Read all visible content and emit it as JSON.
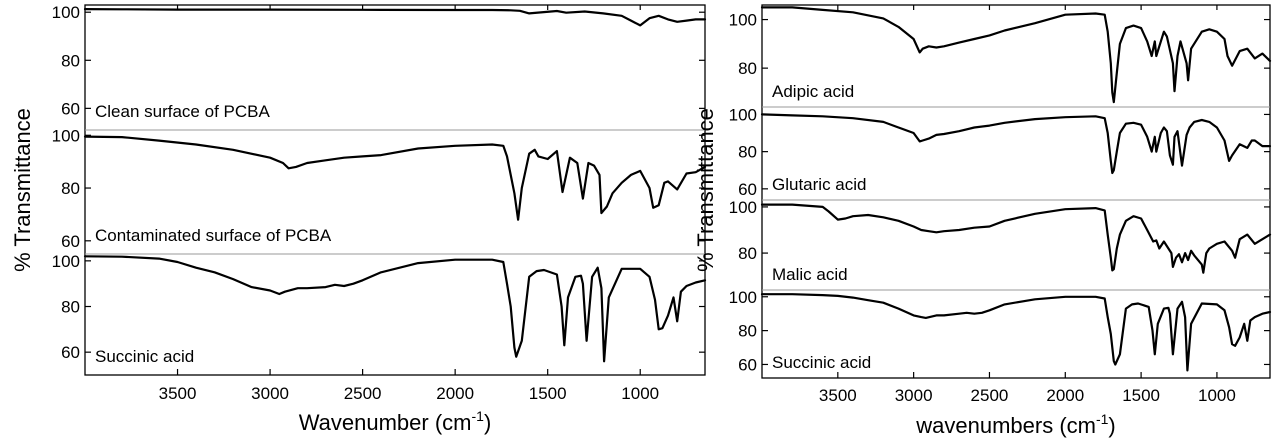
{
  "chart_data": [
    {
      "type": "line",
      "xlabel": "Wavenumber (cm",
      "xlabel_sup": "-1",
      "xlabel_close": ")",
      "ylabel": "% Transmittance",
      "xlim": [
        4000,
        650
      ],
      "xticks": [
        "3500",
        "3000",
        "2500",
        "2000",
        "1500",
        "1000"
      ],
      "x_tick_values": [
        3500,
        3000,
        2500,
        2000,
        1500,
        1000
      ],
      "grid": false,
      "panels": [
        {
          "label": "Clean surface of PCBA",
          "ylim": [
            51,
            103
          ],
          "yticks": [
            {
              "v": 100,
              "t": "100"
            },
            {
              "v": 80,
              "t": "80"
            },
            {
              "v": 60,
              "t": "60"
            }
          ],
          "x": [
            4000,
            3800,
            3500,
            3000,
            2500,
            2000,
            1800,
            1700,
            1650,
            1600,
            1450,
            1400,
            1300,
            1200,
            1100,
            1050,
            1000,
            950,
            900,
            850,
            800,
            750,
            700,
            650
          ],
          "y": [
            101.3,
            101.2,
            101.1,
            101.1,
            101.0,
            100.9,
            100.9,
            100.8,
            100.6,
            99.5,
            100.5,
            99.8,
            100.3,
            99.5,
            98.5,
            96.5,
            94.5,
            97.5,
            98.5,
            97.0,
            96.0,
            96.5,
            97.0,
            97.0
          ]
        },
        {
          "label": "Contaminated surface of PCBA",
          "ylim": [
            55,
            102
          ],
          "yticks": [
            {
              "v": 100,
              "t": "100"
            },
            {
              "v": 80,
              "t": "80"
            },
            {
              "v": 60,
              "t": "60"
            }
          ],
          "x": [
            4000,
            3800,
            3600,
            3400,
            3200,
            3000,
            2930,
            2900,
            2860,
            2800,
            2700,
            2600,
            2500,
            2400,
            2200,
            2000,
            1800,
            1740,
            1720,
            1700,
            1680,
            1660,
            1640,
            1600,
            1570,
            1550,
            1500,
            1450,
            1420,
            1400,
            1380,
            1340,
            1310,
            1280,
            1250,
            1220,
            1210,
            1180,
            1150,
            1100,
            1050,
            1000,
            950,
            930,
            900,
            870,
            850,
            800,
            750,
            700,
            650
          ],
          "y": [
            99.5,
            99.3,
            98.0,
            96.5,
            94.5,
            91.5,
            89.5,
            87.5,
            88.0,
            89.5,
            90.5,
            91.5,
            92.0,
            92.5,
            95.0,
            96.0,
            96.5,
            96.0,
            92.0,
            85.0,
            78.0,
            68.0,
            80.0,
            93.0,
            94.5,
            92.0,
            91.0,
            94.0,
            78.5,
            85.0,
            91.5,
            89.5,
            76.0,
            89.5,
            88.5,
            85.0,
            70.5,
            73.0,
            78.0,
            82.0,
            85.0,
            86.5,
            80.0,
            72.5,
            73.5,
            82.0,
            82.5,
            79.5,
            85.5,
            86.0,
            88.0
          ]
        },
        {
          "label": "Succinic acid",
          "ylim": [
            50,
            103
          ],
          "yticks": [
            {
              "v": 100,
              "t": "100"
            },
            {
              "v": 80,
              "t": "80"
            },
            {
              "v": 60,
              "t": "60"
            }
          ],
          "x": [
            4000,
            3800,
            3600,
            3500,
            3400,
            3300,
            3200,
            3100,
            3000,
            2950,
            2920,
            2850,
            2800,
            2700,
            2650,
            2600,
            2550,
            2500,
            2400,
            2200,
            2000,
            1800,
            1740,
            1720,
            1700,
            1680,
            1670,
            1640,
            1600,
            1560,
            1520,
            1450,
            1425,
            1410,
            1390,
            1350,
            1320,
            1310,
            1290,
            1260,
            1230,
            1210,
            1195,
            1170,
            1100,
            1000,
            950,
            920,
            900,
            880,
            850,
            820,
            800,
            780,
            750,
            700,
            650
          ],
          "y": [
            102.0,
            101.8,
            101.0,
            99.5,
            97.0,
            95.0,
            92.0,
            88.5,
            87.0,
            85.5,
            86.5,
            88.0,
            88.0,
            88.5,
            89.5,
            89.0,
            90.0,
            91.5,
            95.0,
            99.0,
            100.5,
            100.5,
            99.5,
            90.0,
            80.0,
            62.0,
            58.0,
            65.0,
            93.0,
            95.5,
            96.0,
            94.0,
            80.0,
            63.0,
            84.0,
            93.0,
            93.5,
            90.0,
            65.0,
            93.0,
            97.0,
            88.0,
            56.0,
            84.0,
            96.5,
            96.5,
            93.0,
            83.0,
            70.0,
            70.5,
            76.0,
            84.0,
            73.5,
            86.5,
            89.0,
            90.5,
            91.5
          ]
        }
      ]
    },
    {
      "type": "line",
      "xlabel": "wavenumbers (cm",
      "xlabel_sup": "-1",
      "xlabel_close": ")",
      "ylabel": "% Transmittance",
      "xlim": [
        4000,
        650
      ],
      "xticks": [
        "3500",
        "3000",
        "2500",
        "2000",
        "1500",
        "1000"
      ],
      "x_tick_values": [
        3500,
        3000,
        2500,
        2000,
        1500,
        1000
      ],
      "grid": false,
      "panels": [
        {
          "label": "Adipic acid",
          "ylim": [
            64,
            106
          ],
          "yticks": [
            {
              "v": 100,
              "t": "100"
            },
            {
              "v": 80,
              "t": "80"
            }
          ],
          "x": [
            4000,
            3800,
            3600,
            3400,
            3200,
            3100,
            3000,
            2960,
            2940,
            2900,
            2850,
            2800,
            2700,
            2600,
            2500,
            2400,
            2200,
            2000,
            1800,
            1740,
            1720,
            1700,
            1690,
            1680,
            1660,
            1640,
            1600,
            1550,
            1500,
            1460,
            1430,
            1410,
            1400,
            1380,
            1350,
            1330,
            1290,
            1280,
            1260,
            1240,
            1200,
            1190,
            1170,
            1100,
            1050,
            1000,
            950,
            930,
            900,
            850,
            800,
            750,
            700,
            650
          ],
          "y": [
            105.0,
            105.0,
            104.0,
            103.0,
            100.5,
            97.0,
            92.0,
            86.5,
            88.0,
            89.0,
            88.5,
            89.0,
            90.5,
            92.0,
            93.5,
            95.5,
            98.5,
            102.0,
            102.5,
            102.0,
            95.0,
            82.0,
            70.0,
            66.0,
            78.0,
            90.0,
            96.5,
            97.5,
            96.5,
            91.0,
            85.0,
            91.0,
            85.0,
            89.0,
            95.0,
            93.0,
            82.0,
            70.5,
            85.0,
            91.0,
            82.0,
            75.0,
            88.0,
            95.0,
            96.0,
            95.0,
            92.0,
            85.0,
            81.0,
            87.0,
            88.0,
            84.0,
            86.0,
            83.0
          ]
        },
        {
          "label": "Glutaric acid",
          "ylim": [
            54,
            104
          ],
          "yticks": [
            {
              "v": 100,
              "t": "100"
            },
            {
              "v": 80,
              "t": "80"
            },
            {
              "v": 60,
              "t": "60"
            }
          ],
          "x": [
            4000,
            3800,
            3600,
            3400,
            3200,
            3100,
            3000,
            2960,
            2940,
            2900,
            2850,
            2800,
            2700,
            2600,
            2500,
            2400,
            2200,
            2000,
            1800,
            1740,
            1720,
            1700,
            1690,
            1680,
            1660,
            1640,
            1600,
            1550,
            1500,
            1460,
            1430,
            1410,
            1400,
            1370,
            1350,
            1330,
            1310,
            1290,
            1280,
            1260,
            1230,
            1200,
            1180,
            1150,
            1100,
            1050,
            1000,
            950,
            920,
            900,
            850,
            800,
            770,
            750,
            700,
            650
          ],
          "y": [
            100.0,
            99.5,
            99.0,
            98.0,
            96.0,
            93.0,
            90.0,
            85.5,
            86.0,
            87.0,
            89.0,
            89.5,
            91.0,
            93.0,
            94.0,
            95.5,
            97.5,
            98.5,
            99.0,
            98.0,
            90.0,
            75.0,
            68.5,
            70.0,
            80.0,
            90.0,
            95.0,
            95.5,
            94.5,
            88.0,
            80.0,
            88.0,
            80.0,
            90.0,
            93.0,
            91.0,
            78.0,
            73.0,
            88.0,
            91.0,
            72.5,
            89.0,
            93.0,
            96.0,
            97.0,
            96.0,
            93.0,
            86.0,
            75.0,
            78.0,
            84.0,
            82.0,
            86.0,
            86.0,
            83.0,
            83.0
          ]
        },
        {
          "label": "Malic acid",
          "ylim": [
            64,
            103
          ],
          "yticks": [
            {
              "v": 100,
              "t": "100"
            },
            {
              "v": 80,
              "t": "80"
            }
          ],
          "x": [
            4000,
            3800,
            3600,
            3560,
            3500,
            3450,
            3400,
            3300,
            3200,
            3100,
            3000,
            2950,
            2900,
            2850,
            2800,
            2700,
            2600,
            2500,
            2400,
            2200,
            2000,
            1800,
            1740,
            1720,
            1700,
            1690,
            1680,
            1660,
            1640,
            1600,
            1550,
            1500,
            1460,
            1420,
            1400,
            1380,
            1350,
            1300,
            1290,
            1270,
            1250,
            1230,
            1210,
            1190,
            1170,
            1150,
            1100,
            1090,
            1070,
            1050,
            1000,
            950,
            900,
            880,
            850,
            800,
            750,
            700,
            650
          ],
          "y": [
            101.0,
            101.0,
            100.0,
            98.0,
            94.5,
            95.0,
            96.0,
            96.5,
            95.5,
            94.0,
            91.5,
            90.0,
            89.5,
            89.0,
            89.5,
            90.0,
            91.0,
            91.5,
            94.0,
            97.0,
            99.0,
            99.5,
            98.5,
            88.0,
            78.0,
            72.5,
            73.0,
            82.0,
            88.0,
            94.0,
            96.0,
            95.0,
            90.0,
            85.0,
            85.5,
            82.0,
            85.0,
            80.0,
            74.0,
            78.0,
            79.5,
            76.0,
            80.0,
            77.0,
            81.0,
            79.0,
            75.0,
            71.5,
            80.0,
            82.0,
            84.0,
            85.0,
            81.0,
            78.0,
            86.0,
            88.0,
            84.0,
            86.0,
            88.0
          ]
        },
        {
          "label": "Succinic acid",
          "ylim": [
            52,
            104
          ],
          "yticks": [
            {
              "v": 100,
              "t": "100"
            },
            {
              "v": 80,
              "t": "80"
            },
            {
              "v": 60,
              "t": "60"
            }
          ],
          "x": [
            4000,
            3800,
            3600,
            3500,
            3400,
            3300,
            3200,
            3100,
            3000,
            2950,
            2920,
            2850,
            2800,
            2700,
            2650,
            2600,
            2550,
            2500,
            2400,
            2200,
            2000,
            1800,
            1740,
            1720,
            1700,
            1680,
            1670,
            1640,
            1600,
            1560,
            1520,
            1450,
            1425,
            1410,
            1390,
            1350,
            1320,
            1310,
            1290,
            1260,
            1230,
            1210,
            1195,
            1170,
            1100,
            1000,
            950,
            920,
            900,
            880,
            850,
            820,
            800,
            780,
            750,
            700,
            650
          ],
          "y": [
            101.5,
            101.5,
            101.0,
            100.5,
            99.5,
            98.0,
            96.5,
            93.0,
            89.0,
            88.0,
            87.5,
            89.0,
            89.0,
            90.0,
            90.5,
            90.0,
            90.5,
            92.0,
            95.5,
            98.5,
            100.0,
            100.0,
            99.0,
            88.0,
            78.0,
            62.0,
            60.0,
            66.0,
            93.0,
            95.5,
            96.0,
            94.0,
            80.0,
            66.0,
            84.0,
            93.0,
            93.5,
            90.0,
            66.0,
            93.0,
            97.0,
            88.0,
            56.5,
            84.0,
            96.0,
            95.5,
            92.0,
            82.0,
            72.0,
            71.0,
            76.0,
            84.0,
            74.0,
            86.0,
            88.0,
            90.0,
            91.0
          ]
        }
      ]
    }
  ]
}
